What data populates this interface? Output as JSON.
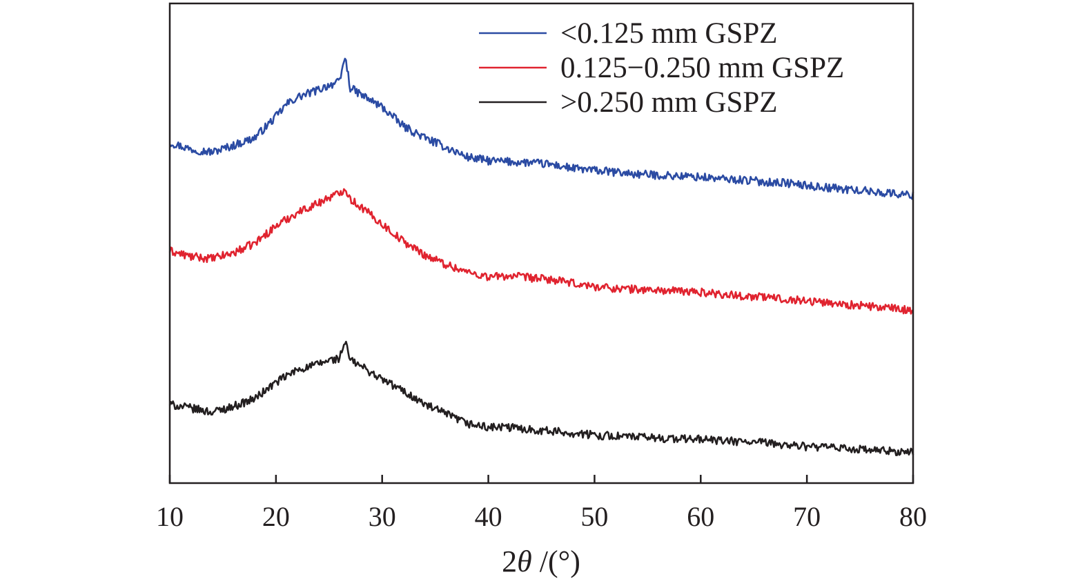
{
  "chart_data": {
    "type": "line",
    "title": "",
    "xlabel": "2θ /(°)",
    "ylabel": "",
    "xlim": [
      10,
      80
    ],
    "x_ticks": [
      "10",
      "20",
      "30",
      "40",
      "50",
      "60",
      "70",
      "80"
    ],
    "y_ticks_shown": false,
    "grid": false,
    "legend_position": "top-right",
    "series": [
      {
        "name": "<0.125 mm GSPZ",
        "color": "#2b4ba3",
        "points": [
          [
            10,
            3.55
          ],
          [
            12,
            3.48
          ],
          [
            14,
            3.45
          ],
          [
            16,
            3.52
          ],
          [
            18,
            3.6
          ],
          [
            20,
            3.82
          ],
          [
            21,
            3.95
          ],
          [
            22,
            4.02
          ],
          [
            24,
            4.1
          ],
          [
            25,
            4.15
          ],
          [
            26,
            4.18
          ],
          [
            26.5,
            4.45
          ],
          [
            27,
            4.12
          ],
          [
            28,
            4.05
          ],
          [
            30,
            3.92
          ],
          [
            32,
            3.72
          ],
          [
            34,
            3.6
          ],
          [
            36,
            3.5
          ],
          [
            38,
            3.4
          ],
          [
            40,
            3.36
          ],
          [
            42,
            3.35
          ],
          [
            44,
            3.34
          ],
          [
            46,
            3.32
          ],
          [
            48,
            3.28
          ],
          [
            50,
            3.26
          ],
          [
            52,
            3.24
          ],
          [
            54,
            3.22
          ],
          [
            56,
            3.21
          ],
          [
            58,
            3.2
          ],
          [
            60,
            3.19
          ],
          [
            62,
            3.17
          ],
          [
            64,
            3.16
          ],
          [
            66,
            3.14
          ],
          [
            68,
            3.13
          ],
          [
            70,
            3.1
          ],
          [
            72,
            3.08
          ],
          [
            74,
            3.06
          ],
          [
            76,
            3.04
          ],
          [
            78,
            3.02
          ],
          [
            80,
            3.0
          ]
        ]
      },
      {
        "name": "0.125−0.250 mm GSPZ",
        "color": "#e0232f",
        "points": [
          [
            10,
            2.42
          ],
          [
            12,
            2.36
          ],
          [
            14,
            2.34
          ],
          [
            16,
            2.4
          ],
          [
            18,
            2.5
          ],
          [
            20,
            2.68
          ],
          [
            22,
            2.82
          ],
          [
            24,
            2.92
          ],
          [
            25,
            2.98
          ],
          [
            26,
            3.02
          ],
          [
            26.5,
            3.08
          ],
          [
            27,
            2.96
          ],
          [
            28,
            2.88
          ],
          [
            30,
            2.7
          ],
          [
            32,
            2.52
          ],
          [
            34,
            2.38
          ],
          [
            36,
            2.28
          ],
          [
            38,
            2.2
          ],
          [
            40,
            2.15
          ],
          [
            42,
            2.16
          ],
          [
            44,
            2.14
          ],
          [
            46,
            2.12
          ],
          [
            48,
            2.08
          ],
          [
            50,
            2.05
          ],
          [
            52,
            2.03
          ],
          [
            54,
            2.02
          ],
          [
            56,
            2.01
          ],
          [
            58,
            2.0
          ],
          [
            60,
            1.99
          ],
          [
            62,
            1.97
          ],
          [
            64,
            1.95
          ],
          [
            66,
            1.94
          ],
          [
            68,
            1.92
          ],
          [
            70,
            1.9
          ],
          [
            72,
            1.88
          ],
          [
            74,
            1.86
          ],
          [
            76,
            1.84
          ],
          [
            78,
            1.82
          ],
          [
            80,
            1.8
          ]
        ]
      },
      {
        "name": ">0.250 mm GSPZ",
        "color": "#231f20",
        "points": [
          [
            10,
            0.82
          ],
          [
            12,
            0.78
          ],
          [
            14,
            0.74
          ],
          [
            16,
            0.8
          ],
          [
            18,
            0.88
          ],
          [
            20,
            1.05
          ],
          [
            22,
            1.18
          ],
          [
            24,
            1.24
          ],
          [
            25,
            1.28
          ],
          [
            26,
            1.3
          ],
          [
            26.5,
            1.48
          ],
          [
            27,
            1.28
          ],
          [
            28,
            1.22
          ],
          [
            30,
            1.08
          ],
          [
            32,
            0.96
          ],
          [
            34,
            0.82
          ],
          [
            36,
            0.72
          ],
          [
            38,
            0.62
          ],
          [
            40,
            0.58
          ],
          [
            42,
            0.58
          ],
          [
            44,
            0.56
          ],
          [
            46,
            0.54
          ],
          [
            48,
            0.52
          ],
          [
            50,
            0.5
          ],
          [
            52,
            0.49
          ],
          [
            54,
            0.48
          ],
          [
            56,
            0.47
          ],
          [
            58,
            0.46
          ],
          [
            60,
            0.46
          ],
          [
            62,
            0.44
          ],
          [
            64,
            0.43
          ],
          [
            66,
            0.42
          ],
          [
            68,
            0.4
          ],
          [
            70,
            0.38
          ],
          [
            72,
            0.37
          ],
          [
            74,
            0.36
          ],
          [
            76,
            0.34
          ],
          [
            78,
            0.33
          ],
          [
            80,
            0.32
          ]
        ]
      }
    ]
  }
}
